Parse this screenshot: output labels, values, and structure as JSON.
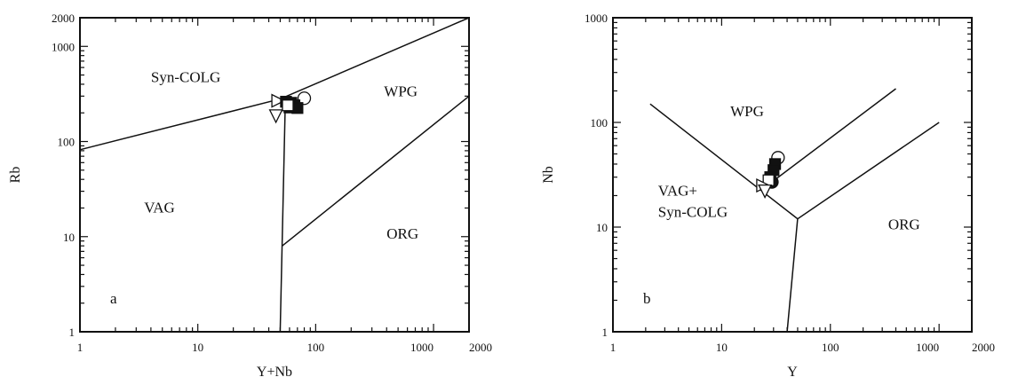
{
  "chart_data": [
    {
      "type": "scatter",
      "panel_label": "a",
      "xlabel": "Y+Nb",
      "ylabel": "Rb",
      "x_scale": "log",
      "y_scale": "log",
      "xlim": [
        1,
        2000
      ],
      "ylim": [
        1,
        2000
      ],
      "x_ticks": [
        1,
        10,
        100,
        1000,
        2000
      ],
      "x_tick_labels": [
        "1",
        "10",
        "100",
        "1000",
        "2000"
      ],
      "y_ticks": [
        1,
        10,
        100,
        1000,
        2000
      ],
      "y_tick_labels": [
        "1",
        "10",
        "100",
        "1000",
        "2000"
      ],
      "boundaries": [
        [
          [
            1,
            82
          ],
          [
            50,
            280
          ],
          [
            2000,
            2000
          ]
        ],
        [
          [
            50,
            280
          ],
          [
            55,
            200
          ],
          [
            50,
            1
          ]
        ],
        [
          [
            52,
            8
          ],
          [
            2000,
            300
          ]
        ]
      ],
      "field_labels": [
        {
          "text": "Syn-COLG",
          "x": 4,
          "y": 420
        },
        {
          "text": "WPG",
          "x": 380,
          "y": 300
        },
        {
          "text": "VAG",
          "x": 3.5,
          "y": 18
        },
        {
          "text": "ORG",
          "x": 400,
          "y": 9.5
        }
      ],
      "points": [
        {
          "x": 80,
          "y": 285,
          "marker": "circle-open"
        },
        {
          "x": 48,
          "y": 268,
          "marker": "triangle-right-open"
        },
        {
          "x": 56,
          "y": 262,
          "marker": "square-filled"
        },
        {
          "x": 62,
          "y": 255,
          "marker": "square-filled"
        },
        {
          "x": 66,
          "y": 240,
          "marker": "square-filled"
        },
        {
          "x": 60,
          "y": 228,
          "marker": "square-filled"
        },
        {
          "x": 70,
          "y": 225,
          "marker": "square-filled"
        },
        {
          "x": 58,
          "y": 240,
          "marker": "square-open"
        },
        {
          "x": 46,
          "y": 185,
          "marker": "triangle-down-open"
        }
      ]
    },
    {
      "type": "scatter",
      "panel_label": "b",
      "xlabel": "Y",
      "ylabel": "Nb",
      "x_scale": "log",
      "y_scale": "log",
      "xlim": [
        1,
        2000
      ],
      "ylim": [
        1,
        1000
      ],
      "x_ticks": [
        1,
        10,
        100,
        1000,
        2000
      ],
      "x_tick_labels": [
        "1",
        "10",
        "100",
        "1000",
        "2000"
      ],
      "y_ticks": [
        1,
        10,
        100,
        1000
      ],
      "y_tick_labels": [
        "1",
        "10",
        "100",
        "1000"
      ],
      "boundaries": [
        [
          [
            2.2,
            150
          ],
          [
            50,
            12
          ],
          [
            1000,
            100
          ]
        ],
        [
          [
            50,
            12
          ],
          [
            40,
            1
          ]
        ],
        [
          [
            25,
            24
          ],
          [
            400,
            210
          ]
        ]
      ],
      "field_labels": [
        {
          "text": "WPG",
          "x": 12,
          "y": 115
        },
        {
          "text": "VAG+",
          "x": 2.6,
          "y": 20
        },
        {
          "text": "Syn-COLG",
          "x": 2.6,
          "y": 12.5
        },
        {
          "text": "ORG",
          "x": 340,
          "y": 9.5
        }
      ],
      "points": [
        {
          "x": 33,
          "y": 46,
          "marker": "circle-open"
        },
        {
          "x": 31,
          "y": 40,
          "marker": "square-filled"
        },
        {
          "x": 30,
          "y": 35,
          "marker": "square-filled"
        },
        {
          "x": 28,
          "y": 30,
          "marker": "square-filled"
        },
        {
          "x": 29,
          "y": 27,
          "marker": "circle-filled"
        },
        {
          "x": 27,
          "y": 28,
          "marker": "square-open"
        },
        {
          "x": 24,
          "y": 25,
          "marker": "triangle-right-open"
        },
        {
          "x": 25,
          "y": 22,
          "marker": "triangle-down-open"
        }
      ]
    }
  ]
}
